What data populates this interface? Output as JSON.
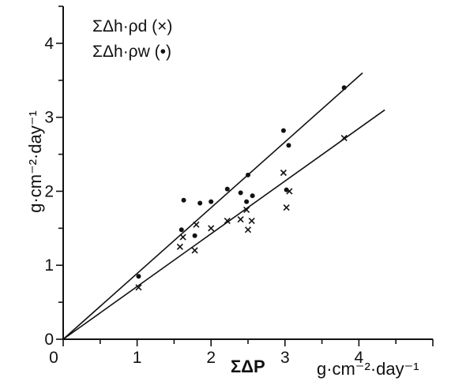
{
  "chart_data": {
    "type": "scatter",
    "xlabel_symbol": "ΣΔP",
    "xlabel_unit": "g·cm⁻²·day⁻¹",
    "ylabel": "g·cm⁻²·day⁻¹",
    "xlim": [
      0,
      5
    ],
    "ylim": [
      0,
      4.5
    ],
    "x_ticks": [
      0,
      1,
      2,
      3,
      4
    ],
    "y_ticks": [
      0,
      1,
      2,
      3,
      4
    ],
    "legend": [
      {
        "text": "ΣΔh·ρd (×)",
        "marker": "x"
      },
      {
        "text": "ΣΔh·ρw (•)",
        "marker": "dot"
      }
    ],
    "series": [
      {
        "marker": "x",
        "points": [
          [
            1.02,
            0.7
          ],
          [
            1.58,
            1.25
          ],
          [
            1.62,
            1.38
          ],
          [
            1.78,
            1.2
          ],
          [
            1.8,
            1.55
          ],
          [
            2.0,
            1.5
          ],
          [
            2.22,
            1.6
          ],
          [
            2.4,
            1.62
          ],
          [
            2.48,
            1.75
          ],
          [
            2.5,
            1.48
          ],
          [
            2.55,
            1.6
          ],
          [
            2.98,
            2.25
          ],
          [
            3.02,
            1.78
          ],
          [
            3.06,
            2.0
          ],
          [
            3.8,
            2.72
          ]
        ],
        "fit_line": [
          [
            0,
            0
          ],
          [
            4.35,
            3.1
          ]
        ]
      },
      {
        "marker": "dot",
        "points": [
          [
            1.02,
            0.85
          ],
          [
            1.6,
            1.48
          ],
          [
            1.63,
            1.88
          ],
          [
            1.78,
            1.4
          ],
          [
            1.85,
            1.84
          ],
          [
            2.0,
            1.86
          ],
          [
            2.22,
            2.03
          ],
          [
            2.4,
            1.98
          ],
          [
            2.48,
            1.86
          ],
          [
            2.5,
            2.22
          ],
          [
            2.56,
            1.94
          ],
          [
            2.98,
            2.82
          ],
          [
            3.02,
            2.02
          ],
          [
            3.05,
            2.62
          ],
          [
            3.8,
            3.4
          ]
        ],
        "fit_line": [
          [
            0,
            0
          ],
          [
            4.05,
            3.6
          ]
        ]
      }
    ]
  }
}
